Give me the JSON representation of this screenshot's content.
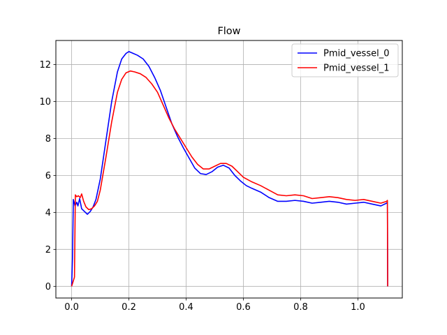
{
  "chart_data": {
    "type": "line",
    "title": "Flow",
    "xlabel": "",
    "ylabel": "",
    "xlim": [
      -0.055,
      1.155
    ],
    "ylim": [
      -0.63,
      13.3
    ],
    "xticks": [
      0.0,
      0.2,
      0.4,
      0.6,
      0.8,
      1.0
    ],
    "xtick_labels": [
      "0.0",
      "0.2",
      "0.4",
      "0.6",
      "0.8",
      "1.0"
    ],
    "yticks": [
      0,
      2,
      4,
      6,
      8,
      10,
      12
    ],
    "ytick_labels": [
      "0",
      "2",
      "4",
      "6",
      "8",
      "10",
      "12"
    ],
    "grid": true,
    "legend_position": "top-right",
    "series": [
      {
        "name": "Pmid_vessel_0",
        "color": "#0000ff",
        "points": [
          [
            0.0,
            0.0
          ],
          [
            0.003,
            1.5
          ],
          [
            0.006,
            4.7
          ],
          [
            0.012,
            4.35
          ],
          [
            0.018,
            4.55
          ],
          [
            0.022,
            4.35
          ],
          [
            0.028,
            4.75
          ],
          [
            0.035,
            4.2
          ],
          [
            0.045,
            4.05
          ],
          [
            0.055,
            3.9
          ],
          [
            0.065,
            4.05
          ],
          [
            0.075,
            4.3
          ],
          [
            0.085,
            4.7
          ],
          [
            0.1,
            5.8
          ],
          [
            0.12,
            7.9
          ],
          [
            0.14,
            10.0
          ],
          [
            0.16,
            11.6
          ],
          [
            0.175,
            12.3
          ],
          [
            0.19,
            12.6
          ],
          [
            0.2,
            12.7
          ],
          [
            0.215,
            12.6
          ],
          [
            0.23,
            12.5
          ],
          [
            0.25,
            12.3
          ],
          [
            0.27,
            11.9
          ],
          [
            0.29,
            11.3
          ],
          [
            0.31,
            10.6
          ],
          [
            0.33,
            9.7
          ],
          [
            0.35,
            8.8
          ],
          [
            0.37,
            8.1
          ],
          [
            0.39,
            7.5
          ],
          [
            0.41,
            6.95
          ],
          [
            0.43,
            6.4
          ],
          [
            0.45,
            6.1
          ],
          [
            0.47,
            6.05
          ],
          [
            0.49,
            6.2
          ],
          [
            0.51,
            6.45
          ],
          [
            0.53,
            6.55
          ],
          [
            0.55,
            6.4
          ],
          [
            0.57,
            6.0
          ],
          [
            0.59,
            5.7
          ],
          [
            0.61,
            5.45
          ],
          [
            0.63,
            5.3
          ],
          [
            0.66,
            5.1
          ],
          [
            0.69,
            4.8
          ],
          [
            0.72,
            4.6
          ],
          [
            0.75,
            4.6
          ],
          [
            0.78,
            4.65
          ],
          [
            0.81,
            4.6
          ],
          [
            0.84,
            4.5
          ],
          [
            0.87,
            4.55
          ],
          [
            0.9,
            4.6
          ],
          [
            0.93,
            4.55
          ],
          [
            0.96,
            4.45
          ],
          [
            0.99,
            4.5
          ],
          [
            1.02,
            4.55
          ],
          [
            1.05,
            4.45
          ],
          [
            1.08,
            4.35
          ],
          [
            1.1,
            4.5
          ],
          [
            1.103,
            4.55
          ],
          [
            1.104,
            0.0
          ]
        ]
      },
      {
        "name": "Pmid_vessel_1",
        "color": "#ff0000",
        "points": [
          [
            0.0,
            0.0
          ],
          [
            0.006,
            0.3
          ],
          [
            0.01,
            0.5
          ],
          [
            0.013,
            4.95
          ],
          [
            0.018,
            4.85
          ],
          [
            0.024,
            4.9
          ],
          [
            0.03,
            4.8
          ],
          [
            0.035,
            5.0
          ],
          [
            0.042,
            4.6
          ],
          [
            0.05,
            4.3
          ],
          [
            0.06,
            4.15
          ],
          [
            0.07,
            4.2
          ],
          [
            0.08,
            4.35
          ],
          [
            0.09,
            4.6
          ],
          [
            0.1,
            5.2
          ],
          [
            0.12,
            7.0
          ],
          [
            0.14,
            8.9
          ],
          [
            0.16,
            10.5
          ],
          [
            0.175,
            11.2
          ],
          [
            0.19,
            11.55
          ],
          [
            0.205,
            11.65
          ],
          [
            0.22,
            11.6
          ],
          [
            0.24,
            11.5
          ],
          [
            0.26,
            11.3
          ],
          [
            0.28,
            10.95
          ],
          [
            0.3,
            10.5
          ],
          [
            0.32,
            9.8
          ],
          [
            0.34,
            9.1
          ],
          [
            0.36,
            8.5
          ],
          [
            0.38,
            8.0
          ],
          [
            0.4,
            7.5
          ],
          [
            0.42,
            7.0
          ],
          [
            0.44,
            6.6
          ],
          [
            0.46,
            6.35
          ],
          [
            0.48,
            6.35
          ],
          [
            0.5,
            6.5
          ],
          [
            0.52,
            6.65
          ],
          [
            0.54,
            6.65
          ],
          [
            0.56,
            6.5
          ],
          [
            0.58,
            6.2
          ],
          [
            0.6,
            5.9
          ],
          [
            0.63,
            5.65
          ],
          [
            0.66,
            5.45
          ],
          [
            0.69,
            5.2
          ],
          [
            0.72,
            4.95
          ],
          [
            0.75,
            4.9
          ],
          [
            0.78,
            4.95
          ],
          [
            0.81,
            4.9
          ],
          [
            0.84,
            4.75
          ],
          [
            0.87,
            4.8
          ],
          [
            0.9,
            4.85
          ],
          [
            0.93,
            4.8
          ],
          [
            0.96,
            4.7
          ],
          [
            0.99,
            4.65
          ],
          [
            1.02,
            4.7
          ],
          [
            1.05,
            4.6
          ],
          [
            1.08,
            4.5
          ],
          [
            1.1,
            4.6
          ],
          [
            1.103,
            4.65
          ],
          [
            1.104,
            0.0
          ]
        ]
      }
    ]
  }
}
